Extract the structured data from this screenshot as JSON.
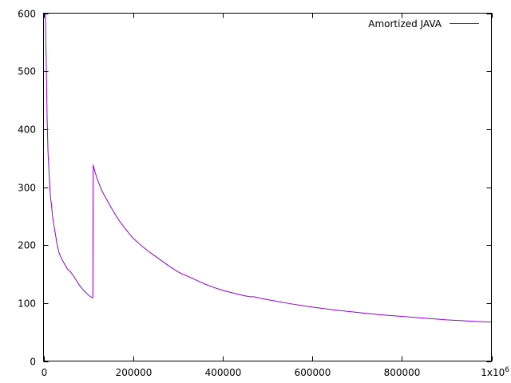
{
  "chart_data": {
    "type": "line",
    "title": "",
    "xlabel": "",
    "ylabel": "",
    "xlim": [
      0,
      1000000
    ],
    "ylim": [
      0,
      600
    ],
    "x_ticks": [
      {
        "value": 0,
        "label": "0"
      },
      {
        "value": 200000,
        "label": "200000"
      },
      {
        "value": 400000,
        "label": "400000"
      },
      {
        "value": 600000,
        "label": "600000"
      },
      {
        "value": 800000,
        "label": "800000"
      },
      {
        "value": 1000000,
        "label": "1x10",
        "sup": "6"
      }
    ],
    "y_ticks": [
      {
        "value": 0,
        "label": "0"
      },
      {
        "value": 100,
        "label": "100"
      },
      {
        "value": 200,
        "label": "200"
      },
      {
        "value": 300,
        "label": "300"
      },
      {
        "value": 400,
        "label": "400"
      },
      {
        "value": 500,
        "label": "500"
      },
      {
        "value": 600,
        "label": "600"
      }
    ],
    "grid": false,
    "legend_position": "top-right",
    "series": [
      {
        "name": "Amortized JAVA",
        "color": "#9400d3",
        "points": [
          [
            4200,
            600
          ],
          [
            5000,
            560
          ],
          [
            6000,
            520
          ],
          [
            8000,
            420
          ],
          [
            10000,
            360
          ],
          [
            12000,
            330
          ],
          [
            14000,
            300
          ],
          [
            16000,
            280
          ],
          [
            18000,
            268
          ],
          [
            20000,
            250
          ],
          [
            22000,
            240
          ],
          [
            25000,
            226
          ],
          [
            28000,
            212
          ],
          [
            30000,
            202
          ],
          [
            35000,
            186
          ],
          [
            40000,
            177
          ],
          [
            45000,
            170
          ],
          [
            50000,
            163
          ],
          [
            55000,
            157
          ],
          [
            60000,
            154
          ],
          [
            65000,
            149
          ],
          [
            70000,
            143
          ],
          [
            75000,
            137
          ],
          [
            80000,
            131
          ],
          [
            85000,
            126
          ],
          [
            90000,
            122
          ],
          [
            95000,
            118
          ],
          [
            100000,
            114
          ],
          [
            105000,
            111
          ],
          [
            110000,
            109
          ],
          [
            111000,
            338
          ],
          [
            115000,
            326
          ],
          [
            120000,
            314
          ],
          [
            125000,
            304
          ],
          [
            130000,
            294
          ],
          [
            135000,
            287
          ],
          [
            140000,
            280
          ],
          [
            150000,
            266
          ],
          [
            160000,
            253
          ],
          [
            170000,
            241
          ],
          [
            180000,
            231
          ],
          [
            190000,
            221
          ],
          [
            200000,
            212
          ],
          [
            210000,
            205
          ],
          [
            220000,
            198
          ],
          [
            240000,
            186
          ],
          [
            260000,
            175
          ],
          [
            280000,
            164
          ],
          [
            300000,
            154
          ],
          [
            310000,
            150
          ],
          [
            320000,
            147
          ],
          [
            340000,
            140
          ],
          [
            360000,
            133
          ],
          [
            380000,
            127
          ],
          [
            400000,
            122
          ],
          [
            420000,
            118
          ],
          [
            440000,
            114
          ],
          [
            460000,
            111
          ],
          [
            470000,
            111
          ],
          [
            480000,
            109
          ],
          [
            500000,
            106
          ],
          [
            550000,
            99
          ],
          [
            600000,
            93
          ],
          [
            650000,
            88
          ],
          [
            700000,
            84
          ],
          [
            750000,
            80
          ],
          [
            800000,
            77
          ],
          [
            850000,
            74
          ],
          [
            900000,
            71
          ],
          [
            950000,
            69
          ],
          [
            1000000,
            67
          ]
        ]
      }
    ]
  }
}
